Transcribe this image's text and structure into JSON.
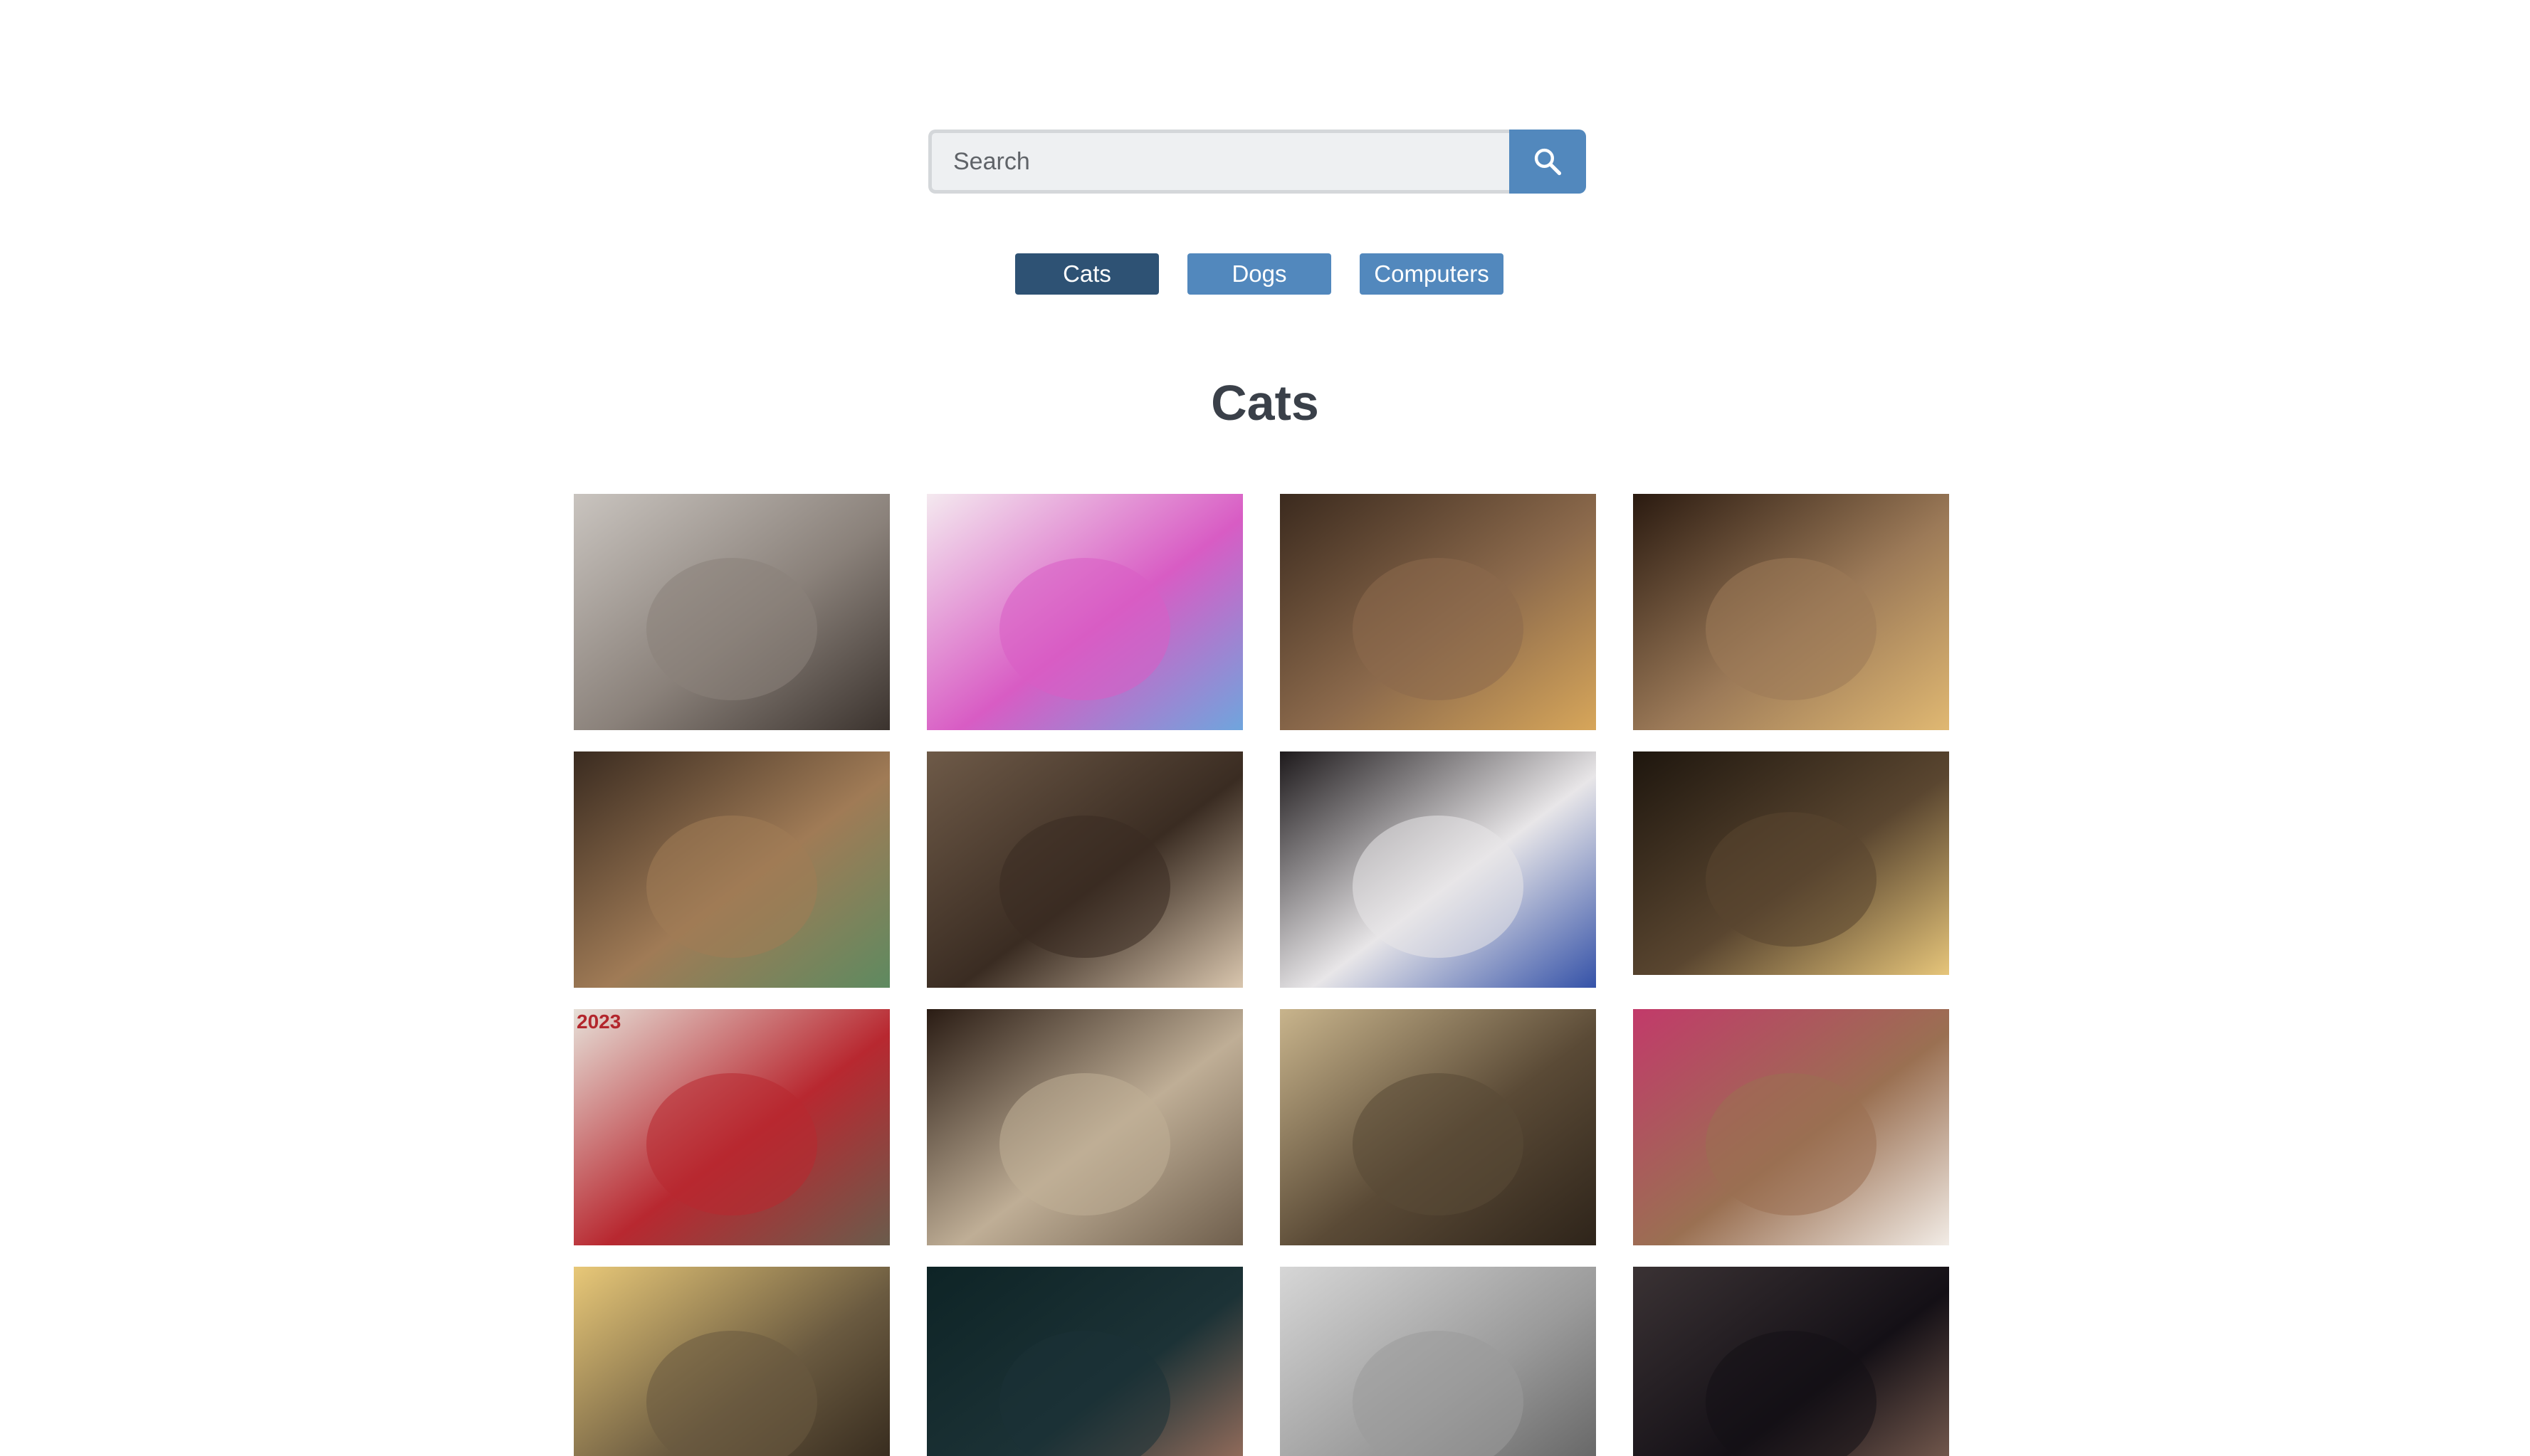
{
  "search": {
    "placeholder": "Search",
    "value": "",
    "button_icon": "search-icon"
  },
  "categories": [
    {
      "label": "Cats",
      "active": true
    },
    {
      "label": "Dogs",
      "active": false
    },
    {
      "label": "Computers",
      "active": false
    }
  ],
  "section_title": "Cats",
  "gallery": {
    "photo_3_1_caption": "2023",
    "photos": [
      {
        "subject": "two cats cuddling",
        "colors": [
          "#c9c4bf",
          "#8a817a",
          "#3b332e"
        ]
      },
      {
        "subject": "watercolor art product listing",
        "colors": [
          "#f4e9ef",
          "#d85cc4",
          "#6fa5dd"
        ]
      },
      {
        "subject": "tabby cat with bokeh lights",
        "colors": [
          "#3b2a1e",
          "#8c6a4c",
          "#d7a65a"
        ]
      },
      {
        "subject": "tabby cat with christmas lights",
        "colors": [
          "#2a1a10",
          "#9c7a58",
          "#e0b872"
        ]
      },
      {
        "subject": "tabby cat with christmas tree",
        "colors": [
          "#3a2b20",
          "#a07b56",
          "#5e8a60"
        ]
      },
      {
        "subject": "tortoiseshell cat drinking",
        "colors": [
          "#6e5a48",
          "#3a2c22",
          "#d9c6ae"
        ]
      },
      {
        "subject": "tuxedo cat with toy car",
        "colors": [
          "#1e1a1c",
          "#e8e6e8",
          "#3552a8"
        ]
      },
      {
        "subject": "cat in dark room with lights",
        "colors": [
          "#1e160e",
          "#5a4630",
          "#e6c57a"
        ]
      },
      {
        "subject": "tabby cat 2023",
        "colors": [
          "#e6e0d8",
          "#b82830",
          "#6a5c4c"
        ]
      },
      {
        "subject": "sleeping tabby cat",
        "colors": [
          "#2a1c14",
          "#bfae96",
          "#6e5e4c"
        ]
      },
      {
        "subject": "peeking tabby cat",
        "colors": [
          "#c8b48c",
          "#5a4a36",
          "#2e241a"
        ]
      },
      {
        "subject": "three abyssinian kittens",
        "colors": [
          "#c23a6a",
          "#9a7052",
          "#f2ece6"
        ]
      },
      {
        "subject": "ocelot illustration",
        "colors": [
          "#e8c878",
          "#6a5a40",
          "#2a2016"
        ]
      },
      {
        "subject": "black cat with hand",
        "colors": [
          "#0e2426",
          "#1c3236",
          "#b07a64"
        ]
      },
      {
        "subject": "leopard on rocks black and white",
        "colors": [
          "#d6d6d6",
          "#9a9a9a",
          "#5a5a5a"
        ]
      },
      {
        "subject": "black cat sleeping in bag",
        "colors": [
          "#3a3234",
          "#141016",
          "#8a6a5a"
        ]
      }
    ]
  }
}
